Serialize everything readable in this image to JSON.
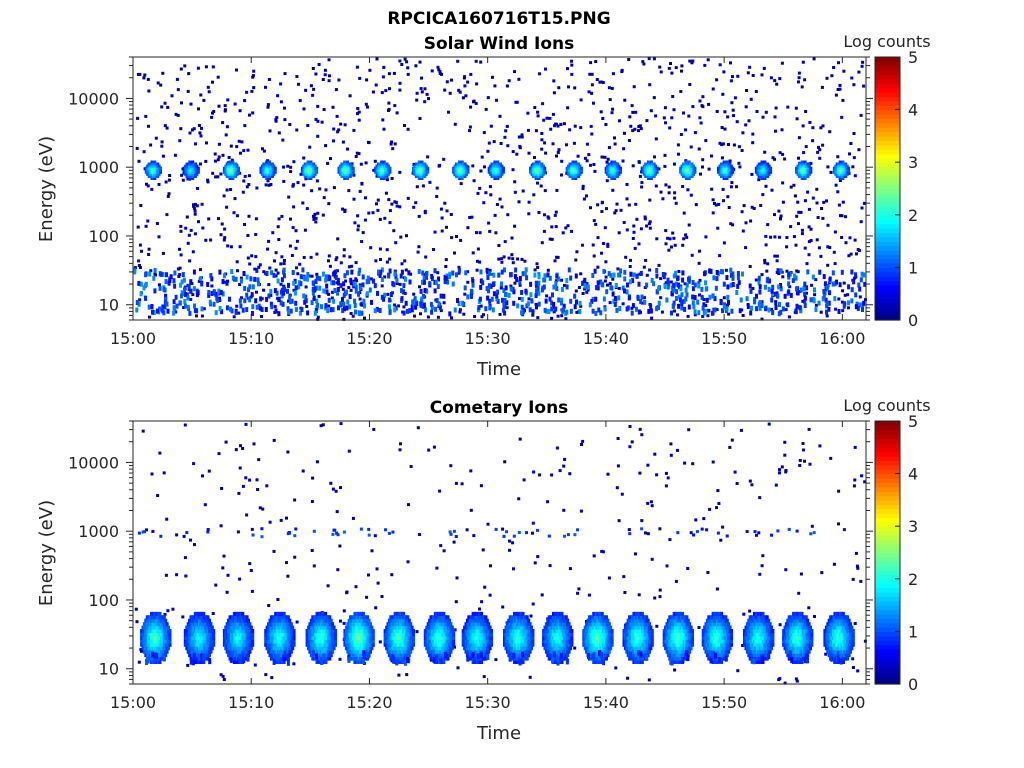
{
  "figure": {
    "title": "RPCICA160716T15.PNG"
  },
  "colorscale": {
    "stops": [
      "#00007f",
      "#0000ff",
      "#007fff",
      "#00ffff",
      "#7fff7f",
      "#ffff00",
      "#ff7f00",
      "#ff0000",
      "#7f0000"
    ]
  },
  "chart_data": [
    {
      "type": "heatmap",
      "title": "Solar Wind Ions",
      "xlabel": "Time",
      "ylabel": "Energy (eV)",
      "xlim": [
        "15:00",
        "16:02"
      ],
      "ylim": [
        6,
        40000
      ],
      "yscale": "log",
      "x_ticks": [
        "15:00",
        "15:10",
        "15:20",
        "15:30",
        "15:40",
        "15:50",
        "16:00"
      ],
      "y_ticks": [
        10,
        100,
        1000,
        10000
      ],
      "y_tick_labels": [
        "10",
        "100",
        "1000",
        "10000"
      ],
      "colorbar": {
        "label": "Log counts",
        "range": [
          0,
          5
        ],
        "ticks": [
          "0",
          "1",
          "2",
          "3",
          "4",
          "5"
        ]
      },
      "bursts": [
        {
          "time": "15:01.6",
          "energy": 950,
          "log_counts": 2.4
        },
        {
          "time": "15:04.8",
          "energy": 950,
          "log_counts": 2.0
        },
        {
          "time": "15:08.2",
          "energy": 950,
          "log_counts": 2.6
        },
        {
          "time": "15:11.3",
          "energy": 950,
          "log_counts": 2.3
        },
        {
          "time": "15:14.8",
          "energy": 950,
          "log_counts": 2.6
        },
        {
          "time": "15:17.9",
          "energy": 950,
          "log_counts": 2.6
        },
        {
          "time": "15:21.0",
          "energy": 950,
          "log_counts": 2.5
        },
        {
          "time": "15:24.2",
          "energy": 950,
          "log_counts": 2.6
        },
        {
          "time": "15:27.6",
          "energy": 950,
          "log_counts": 2.6
        },
        {
          "time": "15:30.6",
          "energy": 950,
          "log_counts": 2.3
        },
        {
          "time": "15:34.1",
          "energy": 950,
          "log_counts": 2.6
        },
        {
          "time": "15:37.2",
          "energy": 950,
          "log_counts": 2.5
        },
        {
          "time": "15:40.5",
          "energy": 950,
          "log_counts": 2.3
        },
        {
          "time": "15:43.6",
          "energy": 950,
          "log_counts": 2.6
        },
        {
          "time": "15:46.8",
          "energy": 950,
          "log_counts": 2.6
        },
        {
          "time": "15:50.0",
          "energy": 950,
          "log_counts": 2.3
        },
        {
          "time": "15:53.2",
          "energy": 950,
          "log_counts": 2.1
        },
        {
          "time": "15:56.6",
          "energy": 950,
          "log_counts": 2.5
        },
        {
          "time": "15:59.8",
          "energy": 950,
          "log_counts": 2.5
        }
      ],
      "low_energy_band": {
        "energy_range": [
          8,
          35
        ],
        "log_counts_typical": 1.0
      },
      "background": {
        "energy_range": [
          6,
          40000
        ],
        "log_counts_typical": 0.3
      }
    },
    {
      "type": "heatmap",
      "title": "Cometary Ions",
      "xlabel": "Time",
      "ylabel": "Energy (eV)",
      "xlim": [
        "15:00",
        "16:02"
      ],
      "ylim": [
        6,
        40000
      ],
      "yscale": "log",
      "x_ticks": [
        "15:00",
        "15:10",
        "15:20",
        "15:30",
        "15:40",
        "15:50",
        "16:00"
      ],
      "y_ticks": [
        10,
        100,
        1000,
        10000
      ],
      "y_tick_labels": [
        "10",
        "100",
        "1000",
        "10000"
      ],
      "colorbar": {
        "label": "Log counts",
        "range": [
          0,
          5
        ],
        "ticks": [
          "0",
          "1",
          "2",
          "3",
          "4",
          "5"
        ]
      },
      "bursts": [
        {
          "time": "15:01.8",
          "energy": 30,
          "log_counts": 2.3
        },
        {
          "time": "15:05.5",
          "energy": 30,
          "log_counts": 2.0
        },
        {
          "time": "15:08.8",
          "energy": 30,
          "log_counts": 2.0
        },
        {
          "time": "15:12.3",
          "energy": 30,
          "log_counts": 2.1
        },
        {
          "time": "15:15.8",
          "energy": 30,
          "log_counts": 2.2
        },
        {
          "time": "15:19.0",
          "energy": 30,
          "log_counts": 2.5
        },
        {
          "time": "15:22.4",
          "energy": 30,
          "log_counts": 2.3
        },
        {
          "time": "15:25.8",
          "energy": 30,
          "log_counts": 2.2
        },
        {
          "time": "15:29.0",
          "energy": 30,
          "log_counts": 2.1
        },
        {
          "time": "15:32.5",
          "energy": 30,
          "log_counts": 2.2
        },
        {
          "time": "15:35.8",
          "energy": 30,
          "log_counts": 2.1
        },
        {
          "time": "15:39.2",
          "energy": 30,
          "log_counts": 2.4
        },
        {
          "time": "15:42.6",
          "energy": 30,
          "log_counts": 2.2
        },
        {
          "time": "15:46.0",
          "energy": 30,
          "log_counts": 2.3
        },
        {
          "time": "15:49.3",
          "energy": 30,
          "log_counts": 2.2
        },
        {
          "time": "15:52.8",
          "energy": 30,
          "log_counts": 2.1
        },
        {
          "time": "15:56.1",
          "energy": 30,
          "log_counts": 2.2
        },
        {
          "time": "15:59.6",
          "energy": 30,
          "log_counts": 2.2
        }
      ],
      "mid_energy_blips": {
        "energy": 1000,
        "log_counts_typical": 0.8
      },
      "background": {
        "energy_range": [
          6,
          40000
        ],
        "log_counts_typical": 0.3
      }
    }
  ]
}
